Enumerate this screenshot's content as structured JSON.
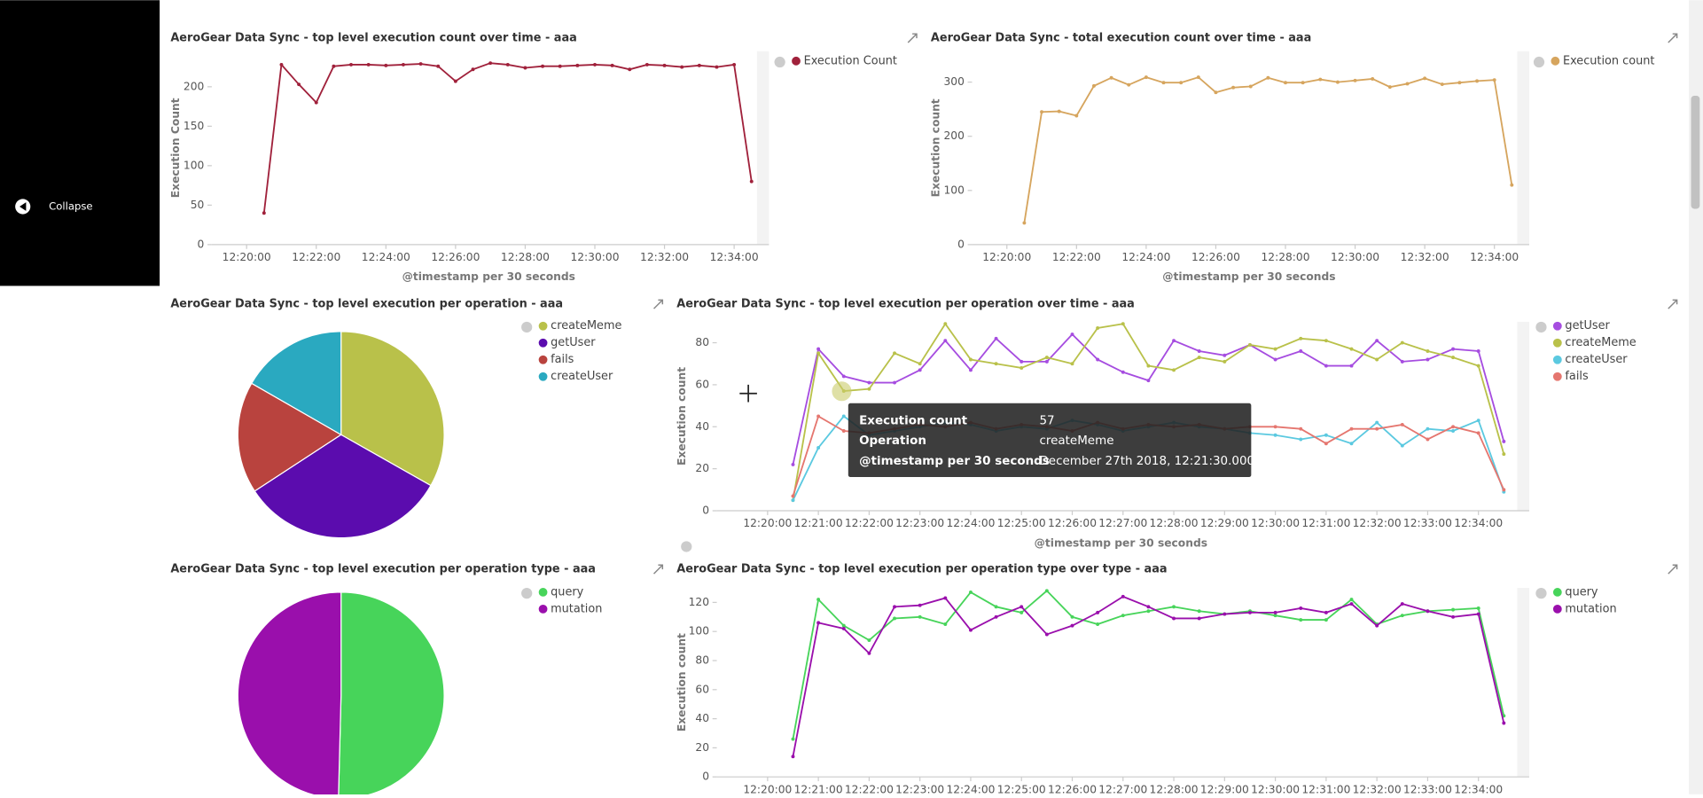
{
  "sidebar": {
    "collapse": "Collapse"
  },
  "chart_data": [
    {
      "type": "line",
      "title": "AeroGear Data Sync - top level execution count over time - aaa",
      "x_label": "@timestamp per 30 seconds",
      "y_label": "Execution Count",
      "x": [
        "12:20:30",
        "12:21:00",
        "12:21:30",
        "12:22:00",
        "12:22:30",
        "12:23:00",
        "12:23:30",
        "12:24:00",
        "12:24:30",
        "12:25:00",
        "12:25:30",
        "12:26:00",
        "12:26:30",
        "12:27:00",
        "12:27:30",
        "12:28:00",
        "12:28:30",
        "12:29:00",
        "12:29:30",
        "12:30:00",
        "12:30:30",
        "12:31:00",
        "12:31:30",
        "12:32:00",
        "12:32:30",
        "12:33:00",
        "12:33:30",
        "12:34:00",
        "12:34:30"
      ],
      "series": [
        {
          "name": "Execution Count",
          "color": "#a0213b",
          "values": [
            40,
            228,
            203,
            180,
            226,
            228,
            228,
            227,
            228,
            229,
            226,
            207,
            222,
            230,
            228,
            224,
            226,
            226,
            227,
            228,
            227,
            222,
            228,
            227,
            225,
            227,
            225,
            228,
            80
          ]
        }
      ],
      "xlim": [
        "12:19:00",
        "12:35:00"
      ],
      "xticks": [
        "12:20:00",
        "12:22:00",
        "12:24:00",
        "12:26:00",
        "12:28:00",
        "12:30:00",
        "12:32:00",
        "12:34:00"
      ],
      "ylim": [
        0,
        245
      ],
      "yticks": [
        0,
        50,
        100,
        150,
        200
      ]
    },
    {
      "type": "line",
      "title": "AeroGear Data Sync - total execution count over time - aaa",
      "x_label": "@timestamp per 30 seconds",
      "y_label": "Execution count",
      "x": [
        "12:20:30",
        "12:21:00",
        "12:21:30",
        "12:22:00",
        "12:22:30",
        "12:23:00",
        "12:23:30",
        "12:24:00",
        "12:24:30",
        "12:25:00",
        "12:25:30",
        "12:26:00",
        "12:26:30",
        "12:27:00",
        "12:27:30",
        "12:28:00",
        "12:28:30",
        "12:29:00",
        "12:29:30",
        "12:30:00",
        "12:30:30",
        "12:31:00",
        "12:31:30",
        "12:32:00",
        "12:32:30",
        "12:33:00",
        "12:33:30",
        "12:34:00",
        "12:34:30"
      ],
      "series": [
        {
          "name": "Execution count",
          "color": "#d6a55e",
          "values": [
            40,
            245,
            246,
            238,
            293,
            308,
            295,
            309,
            299,
            299,
            309,
            281,
            290,
            292,
            308,
            299,
            299,
            305,
            300,
            303,
            306,
            291,
            297,
            307,
            296,
            299,
            302,
            304,
            110
          ]
        }
      ],
      "xlim": [
        "12:19:00",
        "12:35:00"
      ],
      "xticks": [
        "12:20:00",
        "12:22:00",
        "12:24:00",
        "12:26:00",
        "12:28:00",
        "12:30:00",
        "12:32:00",
        "12:34:00"
      ],
      "ylim": [
        0,
        357
      ],
      "yticks": [
        0,
        100,
        200,
        300
      ]
    },
    {
      "type": "pie",
      "title": "AeroGear Data Sync - top level execution per operation - aaa",
      "categories": [
        "createMeme",
        "getUser",
        "fails",
        "createUser"
      ],
      "values": [
        33.2,
        32.6,
        17.5,
        16.7
      ],
      "colors": [
        "#b9c14a",
        "#5b0cae",
        "#b9433e",
        "#2aa9c0"
      ]
    },
    {
      "type": "line",
      "title": "AeroGear Data Sync - top level execution per operation over time - aaa",
      "x_label": "@timestamp per 30 seconds",
      "y_label": "Execution count",
      "x": [
        "12:20:30",
        "12:21:00",
        "12:21:30",
        "12:22:00",
        "12:22:30",
        "12:23:00",
        "12:23:30",
        "12:24:00",
        "12:24:30",
        "12:25:00",
        "12:25:30",
        "12:26:00",
        "12:26:30",
        "12:27:00",
        "12:27:30",
        "12:28:00",
        "12:28:30",
        "12:29:00",
        "12:29:30",
        "12:30:00",
        "12:30:30",
        "12:31:00",
        "12:31:30",
        "12:32:00",
        "12:32:30",
        "12:33:00",
        "12:33:30",
        "12:34:00",
        "12:34:30"
      ],
      "series": [
        {
          "name": "getUser",
          "color": "#a64de0",
          "values": [
            22,
            77,
            64,
            61,
            61,
            67,
            81,
            67,
            82,
            71,
            71,
            84,
            72,
            66,
            62,
            81,
            76,
            74,
            79,
            72,
            76,
            69,
            69,
            81,
            71,
            72,
            77,
            76,
            33
          ]
        },
        {
          "name": "createMeme",
          "color": "#b9c14a",
          "values": [
            5,
            75,
            57,
            58,
            75,
            70,
            89,
            72,
            70,
            68,
            73,
            70,
            87,
            89,
            69,
            67,
            73,
            71,
            79,
            77,
            82,
            81,
            77,
            72,
            80,
            76,
            73,
            69,
            27
          ]
        },
        {
          "name": "createUser",
          "color": "#5bc9e0",
          "values": [
            5,
            30,
            45,
            36,
            38,
            40,
            42,
            41,
            38,
            40,
            39,
            43,
            41,
            38,
            40,
            42,
            40,
            39,
            37,
            36,
            34,
            36,
            32,
            42,
            31,
            39,
            38,
            43,
            9
          ]
        },
        {
          "name": "fails",
          "color": "#e5766f",
          "values": [
            7,
            45,
            38,
            37,
            39,
            41,
            40,
            42,
            39,
            41,
            40,
            38,
            42,
            39,
            41,
            40,
            41,
            39,
            40,
            40,
            39,
            32,
            39,
            39,
            41,
            34,
            40,
            37,
            10
          ]
        }
      ],
      "xlim": [
        "12:19:00",
        "12:35:00"
      ],
      "xticks": [
        "12:20:00",
        "12:21:00",
        "12:22:00",
        "12:23:00",
        "12:24:00",
        "12:25:00",
        "12:26:00",
        "12:27:00",
        "12:28:00",
        "12:29:00",
        "12:30:00",
        "12:31:00",
        "12:32:00",
        "12:33:00",
        "12:34:00"
      ],
      "ylim": [
        0,
        90
      ],
      "yticks": [
        0,
        20,
        40,
        60,
        80
      ]
    },
    {
      "type": "pie",
      "title": "AeroGear Data Sync - top level execution per operation type - aaa",
      "categories": [
        "query",
        "mutation"
      ],
      "values": [
        50.4,
        49.6
      ],
      "colors": [
        "#47d45a",
        "#9a0fac"
      ]
    },
    {
      "type": "line",
      "title": "AeroGear Data Sync - top level execution per operation type over type - aaa",
      "y_label": "Execution count",
      "x": [
        "12:20:30",
        "12:21:00",
        "12:21:30",
        "12:22:00",
        "12:22:30",
        "12:23:00",
        "12:23:30",
        "12:24:00",
        "12:24:30",
        "12:25:00",
        "12:25:30",
        "12:26:00",
        "12:26:30",
        "12:27:00",
        "12:27:30",
        "12:28:00",
        "12:28:30",
        "12:29:00",
        "12:29:30",
        "12:30:00",
        "12:30:30",
        "12:31:00",
        "12:31:30",
        "12:32:00",
        "12:32:30",
        "12:33:00",
        "12:33:30",
        "12:34:00",
        "12:34:30"
      ],
      "series": [
        {
          "name": "query",
          "color": "#47d45a",
          "values": [
            26,
            122,
            104,
            94,
            109,
            110,
            105,
            127,
            117,
            113,
            128,
            110,
            105,
            111,
            114,
            117,
            114,
            112,
            114,
            111,
            108,
            108,
            122,
            105,
            111,
            114,
            115,
            116,
            42
          ]
        },
        {
          "name": "mutation",
          "color": "#9a0fac",
          "values": [
            14,
            106,
            102,
            85,
            117,
            118,
            123,
            101,
            110,
            117,
            98,
            104,
            113,
            124,
            117,
            109,
            109,
            112,
            113,
            113,
            116,
            113,
            119,
            104,
            119,
            114,
            110,
            112,
            37
          ]
        }
      ],
      "xlim": [
        "12:19:00",
        "12:35:00"
      ],
      "xticks": [
        "12:20:00",
        "12:21:00",
        "12:22:00",
        "12:23:00",
        "12:24:00",
        "12:25:00",
        "12:26:00",
        "12:27:00",
        "12:28:00",
        "12:29:00",
        "12:30:00",
        "12:31:00",
        "12:32:00",
        "12:33:00",
        "12:34:00"
      ],
      "ylim": [
        0,
        130
      ],
      "yticks": [
        0,
        20,
        40,
        60,
        80,
        100,
        120
      ]
    }
  ],
  "tooltip": {
    "rows": [
      [
        "Execution count",
        "57"
      ],
      [
        "Operation",
        "createMeme"
      ],
      [
        "@timestamp per 30 seconds",
        "December 27th 2018, 12:21:30.000"
      ]
    ]
  }
}
